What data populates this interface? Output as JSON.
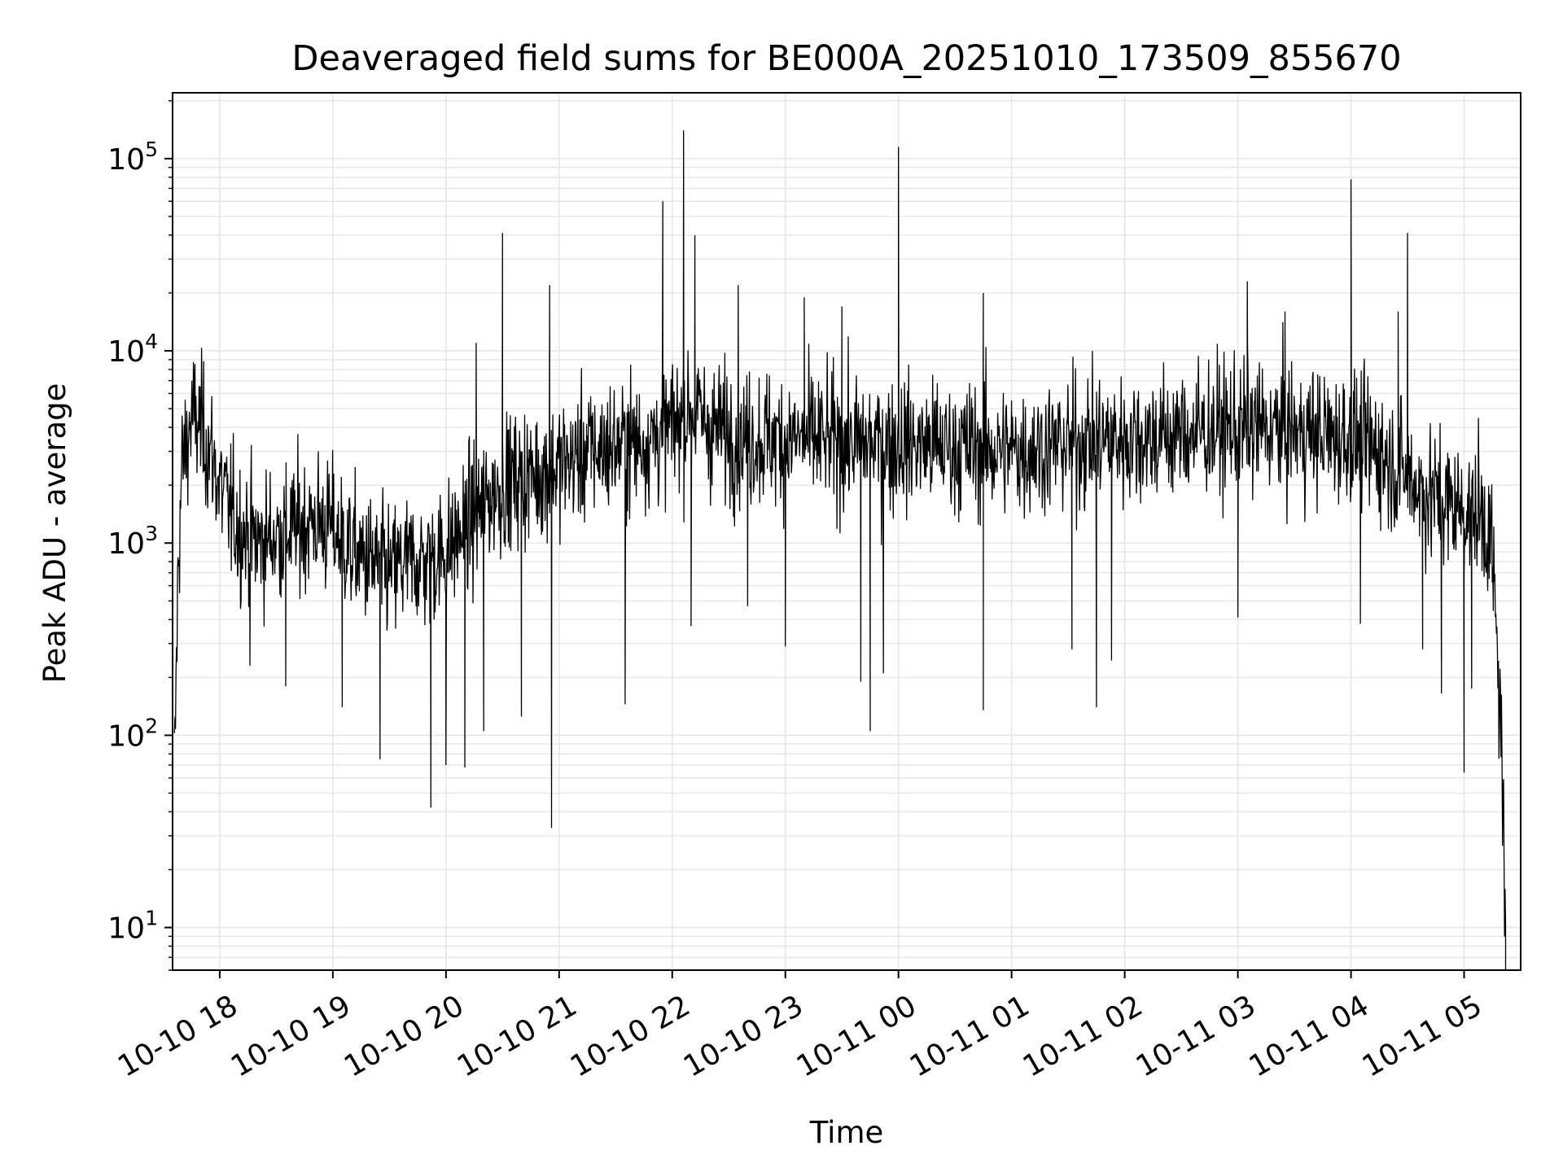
{
  "chart_data": {
    "type": "line",
    "title": "Deaveraged field sums for BE000A_20251010_173509_855670",
    "xlabel": "Time",
    "ylabel": "Peak ADU - average",
    "yscale": "log",
    "ylim": [
      6,
      220000
    ],
    "xlim": [
      "2025-10-10 17:35",
      "2025-10-11 05:30"
    ],
    "grid": true,
    "line_color": "#000000",
    "grid_color": "#e6e6e6",
    "x_ticks": [
      {
        "t": "2025-10-10 18:00",
        "label": "10-10 18"
      },
      {
        "t": "2025-10-10 19:00",
        "label": "10-10 19"
      },
      {
        "t": "2025-10-10 20:00",
        "label": "10-10 20"
      },
      {
        "t": "2025-10-10 21:00",
        "label": "10-10 21"
      },
      {
        "t": "2025-10-10 22:00",
        "label": "10-10 22"
      },
      {
        "t": "2025-10-10 23:00",
        "label": "10-10 23"
      },
      {
        "t": "2025-10-11 00:00",
        "label": "10-11 00"
      },
      {
        "t": "2025-10-11 01:00",
        "label": "10-11 01"
      },
      {
        "t": "2025-10-11 02:00",
        "label": "10-11 02"
      },
      {
        "t": "2025-10-11 03:00",
        "label": "10-11 03"
      },
      {
        "t": "2025-10-11 04:00",
        "label": "10-11 04"
      },
      {
        "t": "2025-10-11 05:00",
        "label": "10-11 05"
      }
    ],
    "y_ticks": [
      {
        "value": 10,
        "base": "10",
        "exp": "1"
      },
      {
        "value": 100,
        "base": "10",
        "exp": "2"
      },
      {
        "value": 1000,
        "base": "10",
        "exp": "3"
      },
      {
        "value": 10000,
        "base": "10",
        "exp": "4"
      },
      {
        "value": 100000,
        "base": "10",
        "exp": "5"
      }
    ],
    "series": [
      {
        "x": [
          "2025-10-10 17:36",
          "2025-10-10 17:38",
          "2025-10-10 17:40",
          "2025-10-10 17:43",
          "2025-10-10 17:45",
          "2025-10-10 17:50",
          "2025-10-10 17:55",
          "2025-10-10 18:00",
          "2025-10-10 18:05",
          "2025-10-10 18:10",
          "2025-10-10 18:15",
          "2025-10-10 18:20",
          "2025-10-10 18:30",
          "2025-10-10 18:40",
          "2025-10-10 18:50",
          "2025-10-10 19:00",
          "2025-10-10 19:10",
          "2025-10-10 19:20",
          "2025-10-10 19:30",
          "2025-10-10 19:40",
          "2025-10-10 19:50",
          "2025-10-10 20:00",
          "2025-10-10 20:10",
          "2025-10-10 20:20",
          "2025-10-10 20:30",
          "2025-10-10 20:40",
          "2025-10-10 20:50",
          "2025-10-10 21:00",
          "2025-10-10 21:15",
          "2025-10-10 21:30",
          "2025-10-10 21:45",
          "2025-10-10 22:00",
          "2025-10-10 22:10",
          "2025-10-10 22:20",
          "2025-10-10 22:40",
          "2025-10-10 23:00",
          "2025-10-10 23:20",
          "2025-10-10 23:40",
          "2025-10-11 00:00",
          "2025-10-11 00:20",
          "2025-10-11 00:40",
          "2025-10-11 01:00",
          "2025-10-11 01:20",
          "2025-10-11 01:40",
          "2025-10-11 02:00",
          "2025-10-11 02:20",
          "2025-10-11 02:40",
          "2025-10-11 03:00",
          "2025-10-11 03:20",
          "2025-10-11 03:40",
          "2025-10-11 04:00",
          "2025-10-11 04:15",
          "2025-10-11 04:30",
          "2025-10-11 04:45",
          "2025-10-11 05:00",
          "2025-10-11 05:10",
          "2025-10-11 05:15",
          "2025-10-11 05:18",
          "2025-10-11 05:20",
          "2025-10-11 05:22"
        ],
        "y": [
          60,
          800,
          2500,
          3500,
          4500,
          4000,
          3000,
          2000,
          1500,
          1200,
          1100,
          1000,
          1100,
          1200,
          1300,
          1200,
          900,
          800,
          700,
          800,
          800,
          900,
          1200,
          1600,
          2000,
          2200,
          2300,
          2500,
          3000,
          3200,
          3400,
          4000,
          5000,
          4000,
          3500,
          3500,
          3400,
          3300,
          3300,
          3200,
          3100,
          3000,
          3200,
          3400,
          3500,
          3600,
          3800,
          4000,
          3900,
          3700,
          3500,
          3000,
          2200,
          1700,
          1500,
          1400,
          900,
          200,
          100,
          6
        ],
        "noise_log10": 0.45
      }
    ],
    "spikes": [
      {
        "t": "2025-10-10 20:30",
        "value": 41000
      },
      {
        "t": "2025-10-10 20:16",
        "value": 11000
      },
      {
        "t": "2025-10-10 20:55",
        "value": 22000
      },
      {
        "t": "2025-10-10 21:55",
        "value": 60000
      },
      {
        "t": "2025-10-10 22:06",
        "value": 140000
      },
      {
        "t": "2025-10-10 22:12",
        "value": 40000
      },
      {
        "t": "2025-10-10 22:35",
        "value": 22000
      },
      {
        "t": "2025-10-10 23:10",
        "value": 19000
      },
      {
        "t": "2025-10-10 23:30",
        "value": 17000
      },
      {
        "t": "2025-10-11 00:00",
        "value": 115000
      },
      {
        "t": "2025-10-11 00:45",
        "value": 20000
      },
      {
        "t": "2025-10-11 03:05",
        "value": 23000
      },
      {
        "t": "2025-10-11 04:00",
        "value": 78000
      },
      {
        "t": "2025-10-11 04:30",
        "value": 41000
      },
      {
        "t": "2025-10-11 04:25",
        "value": 16000
      },
      {
        "t": "2025-10-11 03:25",
        "value": 16000
      }
    ],
    "dips": [
      {
        "t": "2025-10-10 18:16",
        "value": 230
      },
      {
        "t": "2025-10-10 18:35",
        "value": 180
      },
      {
        "t": "2025-10-10 19:05",
        "value": 140
      },
      {
        "t": "2025-10-10 19:25",
        "value": 75
      },
      {
        "t": "2025-10-10 19:52",
        "value": 42
      },
      {
        "t": "2025-10-10 20:00",
        "value": 70
      },
      {
        "t": "2025-10-10 20:10",
        "value": 68
      },
      {
        "t": "2025-10-10 20:20",
        "value": 105
      },
      {
        "t": "2025-10-10 20:40",
        "value": 125
      },
      {
        "t": "2025-10-10 20:56",
        "value": 33
      },
      {
        "t": "2025-10-10 21:35",
        "value": 145
      },
      {
        "t": "2025-10-10 22:10",
        "value": 370
      },
      {
        "t": "2025-10-10 22:40",
        "value": 470
      },
      {
        "t": "2025-10-10 23:00",
        "value": 290
      },
      {
        "t": "2025-10-10 23:40",
        "value": 190
      },
      {
        "t": "2025-10-10 23:45",
        "value": 105
      },
      {
        "t": "2025-10-10 23:52",
        "value": 210
      },
      {
        "t": "2025-10-11 00:45",
        "value": 135
      },
      {
        "t": "2025-10-11 01:32",
        "value": 280
      },
      {
        "t": "2025-10-11 01:45",
        "value": 140
      },
      {
        "t": "2025-10-11 01:53",
        "value": 245
      },
      {
        "t": "2025-10-11 03:00",
        "value": 410
      },
      {
        "t": "2025-10-11 04:05",
        "value": 380
      },
      {
        "t": "2025-10-11 04:38",
        "value": 280
      },
      {
        "t": "2025-10-11 04:48",
        "value": 165
      },
      {
        "t": "2025-10-11 05:00",
        "value": 64
      },
      {
        "t": "2025-10-11 05:04",
        "value": 175
      }
    ]
  }
}
